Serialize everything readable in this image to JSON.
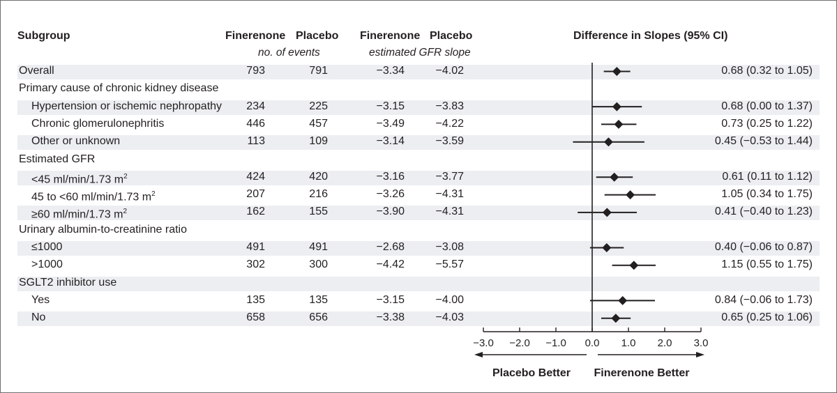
{
  "headers": {
    "subgroup": "Subgroup",
    "fin_events": "Finerenone",
    "pla_events": "Placebo",
    "events_sub": "no. of events",
    "fin_slope": "Finerenone",
    "pla_slope": "Placebo",
    "slope_sub": "estimated GFR slope",
    "difference": "Difference in Slopes (95% CI)"
  },
  "rows": [
    {
      "label": "Overall",
      "indent": false,
      "fin_events": "793",
      "pla_events": "791",
      "fin_slope": "−3.34",
      "pla_slope": "−4.02",
      "ci_text": "0.68 (0.32 to 1.05)"
    },
    {
      "label": "Primary cause of chronic kidney disease",
      "indent": false,
      "category": true
    },
    {
      "label": "Hypertension or ischemic nephropathy",
      "indent": true,
      "fin_events": "234",
      "pla_events": "225",
      "fin_slope": "−3.15",
      "pla_slope": "−3.83",
      "ci_text": "0.68 (0.00 to 1.37)"
    },
    {
      "label": "Chronic glomerulonephritis",
      "indent": true,
      "fin_events": "446",
      "pla_events": "457",
      "fin_slope": "−3.49",
      "pla_slope": "−4.22",
      "ci_text": "0.73 (0.25 to 1.22)"
    },
    {
      "label": "Other or unknown",
      "indent": true,
      "fin_events": "113",
      "pla_events": "109",
      "fin_slope": "−3.14",
      "pla_slope": "−3.59",
      "ci_text": "0.45 (−0.53 to 1.44)"
    },
    {
      "label": "Estimated GFR",
      "indent": false,
      "category": true
    },
    {
      "label": "<45 ml/min/1.73 m",
      "sup": "2",
      "indent": true,
      "fin_events": "424",
      "pla_events": "420",
      "fin_slope": "−3.16",
      "pla_slope": "−3.77",
      "ci_text": "0.61 (0.11 to 1.12)"
    },
    {
      "label": "45 to <60 ml/min/1.73 m",
      "sup": "2",
      "indent": true,
      "fin_events": "207",
      "pla_events": "216",
      "fin_slope": "−3.26",
      "pla_slope": "−4.31",
      "ci_text": "1.05 (0.34 to 1.75)"
    },
    {
      "label": "≥60 ml/min/1.73 m",
      "sup": "2",
      "indent": true,
      "fin_events": "162",
      "pla_events": "155",
      "fin_slope": "−3.90",
      "pla_slope": "−4.31",
      "ci_text": "0.41 (−0.40 to 1.23)"
    },
    {
      "label": "Urinary albumin-to-creatinine ratio",
      "indent": false,
      "category": true
    },
    {
      "label": "≤1000",
      "indent": true,
      "fin_events": "491",
      "pla_events": "491",
      "fin_slope": "−2.68",
      "pla_slope": "−3.08",
      "ci_text": "0.40 (−0.06 to 0.87)"
    },
    {
      "label": ">1000",
      "indent": true,
      "fin_events": "302",
      "pla_events": "300",
      "fin_slope": "−4.42",
      "pla_slope": "−5.57",
      "ci_text": "1.15 (0.55 to 1.75)"
    },
    {
      "label": "SGLT2 inhibitor use",
      "indent": false,
      "category": true
    },
    {
      "label": "Yes",
      "indent": true,
      "fin_events": "135",
      "pla_events": "135",
      "fin_slope": "−3.15",
      "pla_slope": "−4.00",
      "ci_text": "0.84 (−0.06 to 1.73)"
    },
    {
      "label": "No",
      "indent": true,
      "fin_events": "658",
      "pla_events": "656",
      "fin_slope": "−3.38",
      "pla_slope": "−4.03",
      "ci_text": "0.65 (0.25 to 1.06)"
    }
  ],
  "chart_data": {
    "type": "scatter",
    "subtype": "forest-plot",
    "title": "Difference in Slopes (95% CI)",
    "xlim": [
      -3.0,
      3.0
    ],
    "xticks": [
      -3.0,
      -2.0,
      -1.0,
      0.0,
      1.0,
      2.0,
      3.0
    ],
    "xtick_labels": [
      "−3.0",
      "−2.0",
      "−1.0",
      "0.0",
      "1.0",
      "2.0",
      "3.0"
    ],
    "reference_line": 0.0,
    "left_direction_label": "Placebo Better",
    "right_direction_label": "Finerenone Better",
    "points": [
      {
        "subgroup": "Overall",
        "estimate": 0.68,
        "lower": 0.32,
        "upper": 1.05
      },
      {
        "subgroup": "Hypertension or ischemic nephropathy",
        "estimate": 0.68,
        "lower": 0.0,
        "upper": 1.37
      },
      {
        "subgroup": "Chronic glomerulonephritis",
        "estimate": 0.73,
        "lower": 0.25,
        "upper": 1.22
      },
      {
        "subgroup": "Other or unknown",
        "estimate": 0.45,
        "lower": -0.53,
        "upper": 1.44
      },
      {
        "subgroup": "<45 ml/min/1.73 m2",
        "estimate": 0.61,
        "lower": 0.11,
        "upper": 1.12
      },
      {
        "subgroup": "45 to <60 ml/min/1.73 m2",
        "estimate": 1.05,
        "lower": 0.34,
        "upper": 1.75
      },
      {
        "subgroup": "≥60 ml/min/1.73 m2",
        "estimate": 0.41,
        "lower": -0.4,
        "upper": 1.23
      },
      {
        "subgroup": "≤1000",
        "estimate": 0.4,
        "lower": -0.06,
        "upper": 0.87
      },
      {
        "subgroup": ">1000",
        "estimate": 1.15,
        "lower": 0.55,
        "upper": 1.75
      },
      {
        "subgroup": "Yes",
        "estimate": 0.84,
        "lower": -0.06,
        "upper": 1.73
      },
      {
        "subgroup": "No",
        "estimate": 0.65,
        "lower": 0.25,
        "upper": 1.06
      }
    ]
  }
}
